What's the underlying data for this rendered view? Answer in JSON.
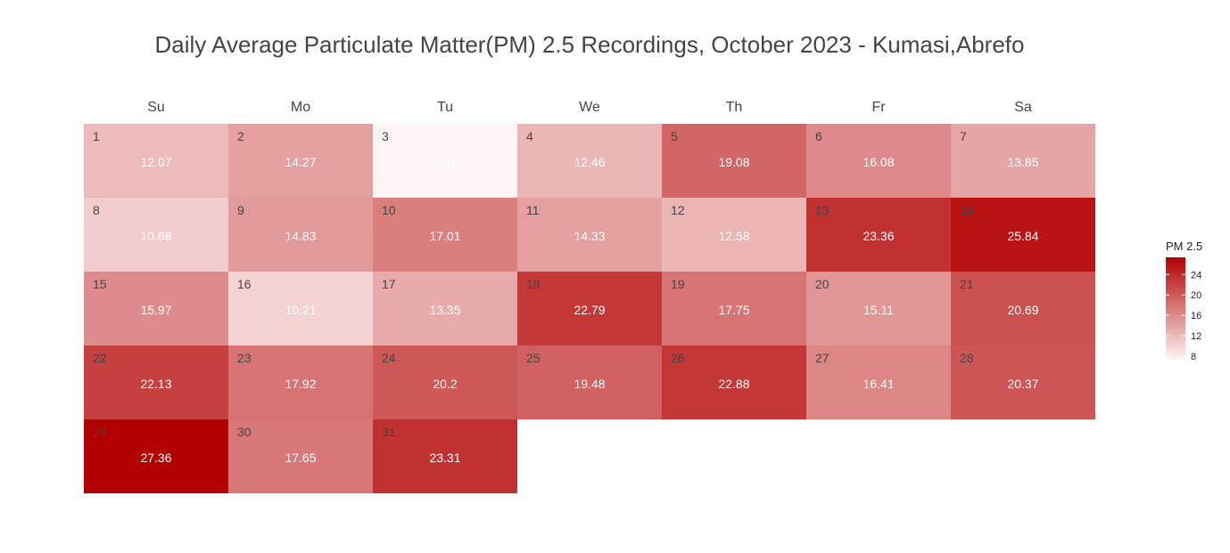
{
  "chart_data": {
    "type": "heatmap",
    "title": "Daily Average Particulate Matter(PM) 2.5 Recordings, October 2023 - Kumasi,Abrefo",
    "weekdays": [
      "Su",
      "Mo",
      "Tu",
      "We",
      "Th",
      "Fr",
      "Sa"
    ],
    "month": "October 2023",
    "first_weekday_index": 0,
    "days": [
      1,
      2,
      3,
      4,
      5,
      6,
      7,
      8,
      9,
      10,
      11,
      12,
      13,
      14,
      15,
      16,
      17,
      18,
      19,
      20,
      21,
      22,
      23,
      24,
      25,
      26,
      27,
      28,
      29,
      30,
      31
    ],
    "values": [
      12.07,
      14.27,
      7.31,
      12.46,
      19.08,
      16.08,
      13.85,
      10.68,
      14.83,
      17.01,
      14.33,
      12.58,
      23.36,
      25.84,
      15.97,
      10.21,
      13.35,
      22.79,
      17.75,
      15.11,
      20.69,
      22.13,
      17.92,
      20.2,
      19.48,
      22.88,
      16.41,
      20.37,
      27.36,
      17.65,
      23.31
    ],
    "legend": {
      "title": "PM 2.5",
      "ticks": [
        8,
        12,
        16,
        20,
        24
      ],
      "range": [
        7.31,
        27.36
      ],
      "low_color": "#fff5f5",
      "high_color": "#b30000"
    }
  }
}
